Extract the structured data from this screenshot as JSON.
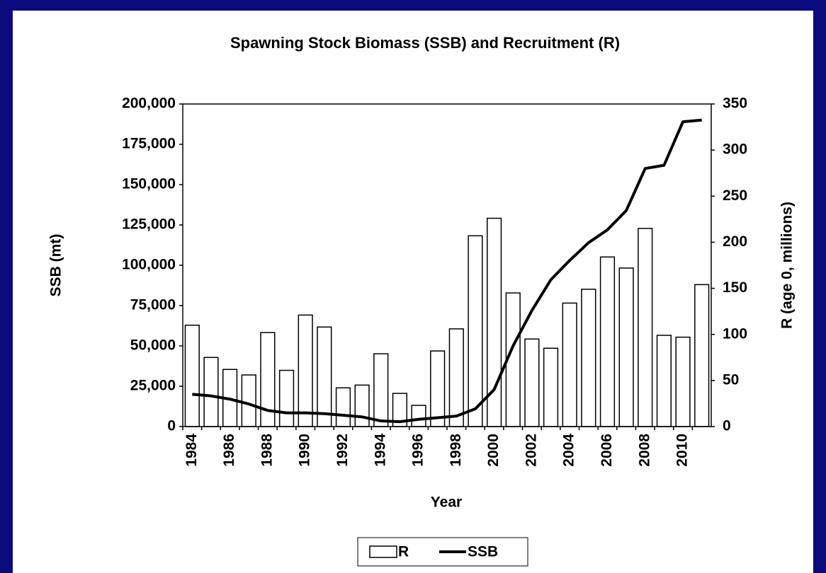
{
  "chart_data": {
    "type": "bar_line",
    "title": "Spawning Stock Biomass (SSB) and Recruitment (R)",
    "x_label": "Year",
    "y_label": "SSB (mt)",
    "y2_label": "R (age 0, millions)",
    "categories": [
      "1984",
      null,
      "1986",
      null,
      "1988",
      null,
      "1990",
      null,
      "1992",
      null,
      "1994",
      null,
      "1996",
      null,
      "1998",
      null,
      "2000",
      null,
      "2002",
      null,
      "2004",
      null,
      "2006",
      null,
      "2008",
      null,
      "2010",
      null
    ],
    "series": [
      {
        "name": "R",
        "type": "bar",
        "axis": "y2",
        "color": "#ffffff",
        "values": [
          110,
          75,
          62,
          56,
          102,
          61,
          121,
          108,
          42,
          45,
          79,
          36,
          23,
          82,
          106,
          207,
          226,
          145,
          95,
          85,
          134,
          149,
          184,
          172,
          215,
          99,
          97,
          154
        ]
      },
      {
        "name": "SSB",
        "type": "line",
        "color": "#000000",
        "values": [
          20000,
          19000,
          17000,
          14000,
          10000,
          8500,
          8500,
          8000,
          7000,
          6000,
          3500,
          3000,
          4500,
          5500,
          6500,
          11000,
          23000,
          50000,
          72000,
          91000,
          103000,
          114000,
          122000,
          134000,
          160000,
          162000,
          189000,
          190000
        ]
      }
    ],
    "ylim": [
      0,
      200000
    ],
    "yticks": [
      0,
      {
        "value": 25000,
        "label": "25,000"
      },
      {
        "value": 50000,
        "label": "50,000"
      },
      {
        "value": 75000,
        "label": "75,000"
      },
      {
        "value": 100000,
        "label": "100,000"
      },
      {
        "value": 125000,
        "label": "125,000"
      },
      {
        "value": 150000,
        "label": "150,000"
      },
      {
        "value": 175000,
        "label": "175,000"
      },
      {
        "value": 200000,
        "label": "200,000"
      }
    ],
    "y2lim": [
      0,
      350
    ],
    "y2ticks": [
      0,
      50,
      100,
      150,
      200,
      250,
      300,
      350
    ],
    "legend": "bottom"
  }
}
